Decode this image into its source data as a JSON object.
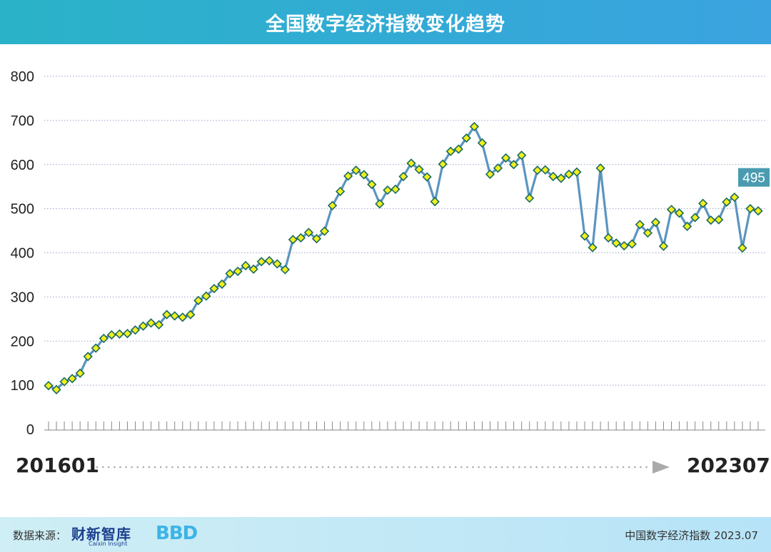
{
  "header": {
    "title": "全国数字经济指数变化趋势"
  },
  "range": {
    "start": "201601",
    "end": "202307"
  },
  "footer": {
    "source_label": "数据来源：",
    "logo_text": "财新智库",
    "logo_sub": "Caixin Insight",
    "logo2_text": "BBD",
    "right_text": "中国数字经济指数 2023.07"
  },
  "colors": {
    "line": "#5b95c0",
    "marker_fill": "#f2ef1c",
    "marker_stroke": "#1a6a62",
    "header": "#35aee0",
    "last_label_bg": "#4a9bb0"
  },
  "chart_data": {
    "type": "line",
    "title": "全国数字经济指数变化趋势",
    "ylim": [
      0,
      800
    ],
    "yticks": [
      0,
      100,
      200,
      300,
      400,
      500,
      600,
      700,
      800
    ],
    "x_start": "201601",
    "x_end": "202307",
    "grid": true,
    "last_label": "495",
    "series": [
      {
        "values": [
          99,
          90,
          108,
          115,
          127,
          165,
          184,
          206,
          214,
          216,
          217,
          225,
          234,
          241,
          237,
          260,
          257,
          254,
          260,
          292,
          302,
          319,
          329,
          353,
          358,
          371,
          363,
          380,
          382,
          375,
          362,
          430,
          434,
          446,
          432,
          449,
          507,
          539,
          574,
          587,
          577,
          555,
          511,
          542,
          544,
          573,
          603,
          589,
          572,
          516,
          601,
          630,
          635,
          660,
          686,
          649,
          578,
          592,
          615,
          600,
          621,
          524,
          587,
          588,
          573,
          569,
          578,
          583,
          438,
          412,
          592,
          434,
          422,
          416,
          420,
          464,
          445,
          469,
          415,
          498,
          490,
          460,
          480,
          512,
          474,
          475,
          515,
          526,
          411,
          500,
          495
        ]
      }
    ]
  }
}
